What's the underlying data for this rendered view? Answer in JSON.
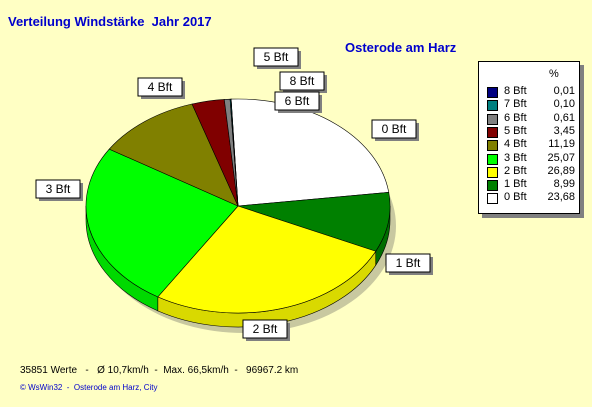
{
  "header": {
    "title": "Verteilung Windstärke  Jahr 2017",
    "station": "Osterode am Harz"
  },
  "legend": {
    "percent_header": "%"
  },
  "footer": {
    "stats": "35851 Werte   -   Ø 10,7km/h  -  Max. 66,5km/h  -   96967.2 km",
    "credit": "© WsWin32  -  Osterode am Harz, City"
  },
  "chart_data": {
    "type": "pie",
    "title": "Verteilung Windstärke  Jahr 2017",
    "subtitle": "Osterode am Harz",
    "legend_position": "right",
    "slices": [
      {
        "label": "8 Bft",
        "value": 0.01,
        "value_label": "0,01",
        "color": "#000080"
      },
      {
        "label": "7 Bft",
        "value": 0.1,
        "value_label": "0,10",
        "color": "#008080"
      },
      {
        "label": "6 Bft",
        "value": 0.61,
        "value_label": "0,61",
        "color": "#808080"
      },
      {
        "label": "5 Bft",
        "value": 3.45,
        "value_label": "3,45",
        "color": "#800000"
      },
      {
        "label": "4 Bft",
        "value": 11.19,
        "value_label": "11,19",
        "color": "#808000"
      },
      {
        "label": "3 Bft",
        "value": 25.07,
        "value_label": "25,07",
        "color": "#00FF00"
      },
      {
        "label": "2 Bft",
        "value": 26.89,
        "value_label": "26,89",
        "color": "#FFFF00"
      },
      {
        "label": "1 Bft",
        "value": 8.99,
        "value_label": "8,99",
        "color": "#008000"
      },
      {
        "label": "0 Bft",
        "value": 23.68,
        "value_label": "23,68",
        "color": "#FFFFFF"
      }
    ],
    "pie_callouts": [
      "5 Bft",
      "8 Bft",
      "6 Bft",
      "4 Bft",
      "0 Bft",
      "3 Bft",
      "1 Bft",
      "2 Bft"
    ]
  }
}
